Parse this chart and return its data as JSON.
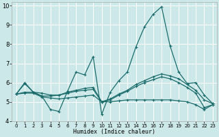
{
  "xlabel": "Humidex (Indice chaleur)",
  "xlim": [
    -0.5,
    23.5
  ],
  "ylim": [
    4,
    10.2
  ],
  "yticks": [
    4,
    5,
    6,
    7,
    8,
    9,
    10
  ],
  "xticks": [
    0,
    1,
    2,
    3,
    4,
    5,
    6,
    7,
    8,
    9,
    10,
    11,
    12,
    13,
    14,
    15,
    16,
    17,
    18,
    19,
    20,
    21,
    22,
    23
  ],
  "bg_color": "#cce8e8",
  "line_color": "#1a6b6b",
  "grid_color": "#b8d8d8",
  "lines": [
    {
      "x": [
        0,
        1,
        2,
        3,
        4,
        5,
        6,
        7,
        8,
        9,
        10,
        11,
        12,
        13,
        14,
        15,
        16,
        17,
        18,
        19,
        20,
        21,
        22,
        23
      ],
      "y": [
        5.4,
        6.0,
        5.5,
        5.3,
        4.6,
        4.5,
        5.55,
        6.55,
        6.4,
        7.35,
        4.35,
        5.5,
        6.1,
        6.55,
        7.85,
        8.9,
        9.55,
        9.95,
        7.9,
        6.55,
        5.95,
        6.0,
        5.35,
        4.9
      ]
    },
    {
      "x": [
        0,
        1,
        2,
        3,
        4,
        5,
        6,
        7,
        8,
        9,
        10,
        11,
        12,
        13,
        14,
        15,
        16,
        17,
        18,
        19,
        20,
        21,
        22,
        23
      ],
      "y": [
        5.4,
        5.95,
        5.5,
        5.45,
        5.35,
        5.35,
        5.5,
        5.6,
        5.7,
        5.75,
        5.0,
        5.15,
        5.4,
        5.6,
        5.9,
        6.1,
        6.3,
        6.45,
        6.35,
        6.2,
        5.9,
        5.6,
        5.1,
        4.9
      ]
    },
    {
      "x": [
        0,
        1,
        2,
        3,
        4,
        5,
        6,
        7,
        8,
        9,
        10,
        11,
        12,
        13,
        14,
        15,
        16,
        17,
        18,
        19,
        20,
        21,
        22,
        23
      ],
      "y": [
        5.4,
        5.5,
        5.5,
        5.3,
        5.3,
        5.35,
        5.45,
        5.55,
        5.6,
        5.65,
        5.0,
        5.1,
        5.35,
        5.55,
        5.8,
        6.0,
        6.15,
        6.3,
        6.2,
        6.0,
        5.75,
        5.45,
        4.7,
        4.85
      ]
    },
    {
      "x": [
        0,
        1,
        2,
        3,
        4,
        5,
        6,
        7,
        8,
        9,
        10,
        11,
        12,
        13,
        14,
        15,
        16,
        17,
        18,
        19,
        20,
        21,
        22,
        23
      ],
      "y": [
        5.4,
        5.45,
        5.45,
        5.25,
        5.2,
        5.15,
        5.2,
        5.25,
        5.3,
        5.35,
        5.0,
        5.0,
        5.05,
        5.1,
        5.1,
        5.1,
        5.1,
        5.1,
        5.1,
        5.05,
        5.0,
        4.85,
        4.6,
        4.85
      ]
    }
  ]
}
